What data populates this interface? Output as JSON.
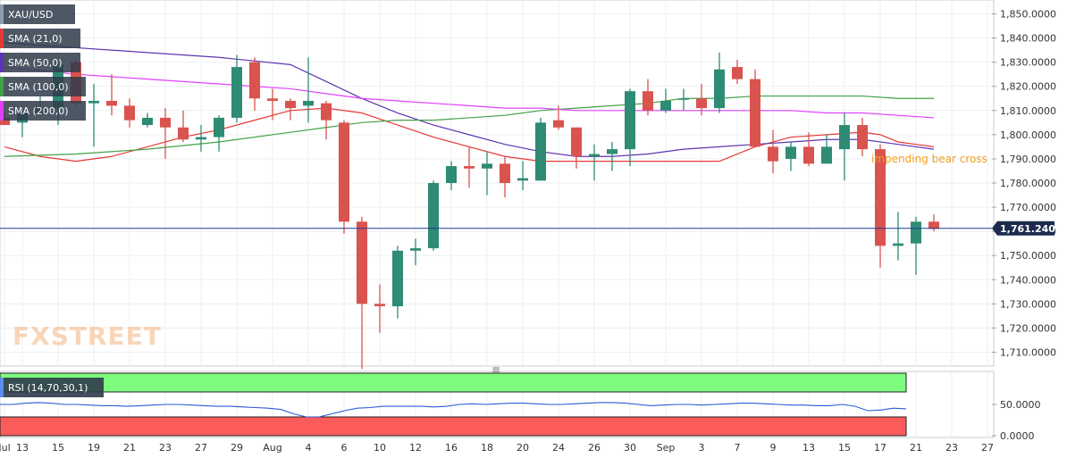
{
  "chart_data": [
    {
      "type": "candlestick",
      "symbol": "XAU/USD",
      "title": "XAU/USD",
      "ylim": [
        1705,
        1855
      ],
      "y_ticks": [
        "1,710.0000",
        "1,720.0000",
        "1,730.0000",
        "1,740.0000",
        "1,750.0000",
        "1,760.0000",
        "1,770.0000",
        "1,780.0000",
        "1,790.0000",
        "1,800.0000",
        "1,810.0000",
        "1,820.0000",
        "1,830.0000",
        "1,840.0000",
        "1,850.0000"
      ],
      "y_tick_values": [
        1710,
        1720,
        1730,
        1740,
        1750,
        1760,
        1770,
        1780,
        1790,
        1800,
        1810,
        1820,
        1830,
        1840,
        1850
      ],
      "last_price": 1761.24,
      "last_price_label": "1,761.2400",
      "annotation": "impending bear cross",
      "watermark": "FXSTREET",
      "legend": [
        {
          "name": "SMA (21,0)",
          "color": "#e53935"
        },
        {
          "name": "SMA (50,0)",
          "color": "#5e35b1"
        },
        {
          "name": "SMA (100,0)",
          "color": "#43a047"
        },
        {
          "name": "SMA (200,0)",
          "color": "#e040fb"
        }
      ],
      "colors": {
        "up": "#2e8b74",
        "down": "#d9534f",
        "annotation": "#f0a020",
        "price_line": "#1f3a93"
      },
      "x_tick_labels": [
        {
          "i": 0,
          "label": "Jul"
        },
        {
          "i": 1,
          "label": "13"
        },
        {
          "i": 3,
          "label": "15"
        },
        {
          "i": 5,
          "label": "19"
        },
        {
          "i": 7,
          "label": "21"
        },
        {
          "i": 9,
          "label": "23"
        },
        {
          "i": 11,
          "label": "27"
        },
        {
          "i": 13,
          "label": "29"
        },
        {
          "i": 15,
          "label": "Aug"
        },
        {
          "i": 17,
          "label": "4"
        },
        {
          "i": 19,
          "label": "6"
        },
        {
          "i": 21,
          "label": "10"
        },
        {
          "i": 23,
          "label": "12"
        },
        {
          "i": 25,
          "label": "16"
        },
        {
          "i": 27,
          "label": "18"
        },
        {
          "i": 29,
          "label": "20"
        },
        {
          "i": 31,
          "label": "24"
        },
        {
          "i": 33,
          "label": "26"
        },
        {
          "i": 35,
          "label": "30"
        },
        {
          "i": 37,
          "label": "Sep"
        },
        {
          "i": 39,
          "label": "3"
        },
        {
          "i": 41,
          "label": "7"
        },
        {
          "i": 43,
          "label": "9"
        },
        {
          "i": 45,
          "label": "13"
        },
        {
          "i": 47,
          "label": "15"
        },
        {
          "i": 49,
          "label": "17"
        },
        {
          "i": 51,
          "label": "21"
        },
        {
          "i": 53,
          "label": "23"
        },
        {
          "i": 55,
          "label": "27"
        }
      ],
      "candles": [
        {
          "o": 1807,
          "h": 1810,
          "l": 1804,
          "c": 1804
        },
        {
          "o": 1805,
          "h": 1812,
          "l": 1799,
          "c": 1809
        },
        {
          "o": 1809,
          "h": 1816,
          "l": 1808,
          "c": 1811
        },
        {
          "o": 1811,
          "h": 1830,
          "l": 1804,
          "c": 1829
        },
        {
          "o": 1830,
          "h": 1831,
          "l": 1812,
          "c": 1813
        },
        {
          "o": 1813,
          "h": 1821,
          "l": 1795,
          "c": 1814
        },
        {
          "o": 1814,
          "h": 1825,
          "l": 1808,
          "c": 1812
        },
        {
          "o": 1812,
          "h": 1815,
          "l": 1803,
          "c": 1806
        },
        {
          "o": 1804,
          "h": 1809,
          "l": 1803,
          "c": 1807
        },
        {
          "o": 1807,
          "h": 1811,
          "l": 1790,
          "c": 1803
        },
        {
          "o": 1803,
          "h": 1810,
          "l": 1797,
          "c": 1798
        },
        {
          "o": 1798,
          "h": 1804,
          "l": 1793,
          "c": 1799
        },
        {
          "o": 1799,
          "h": 1808,
          "l": 1793,
          "c": 1807
        },
        {
          "o": 1807,
          "h": 1833,
          "l": 1805,
          "c": 1828
        },
        {
          "o": 1830,
          "h": 1832,
          "l": 1810,
          "c": 1815
        },
        {
          "o": 1815,
          "h": 1819,
          "l": 1806,
          "c": 1814
        },
        {
          "o": 1814,
          "h": 1815,
          "l": 1806,
          "c": 1811
        },
        {
          "o": 1812,
          "h": 1832,
          "l": 1805,
          "c": 1814
        },
        {
          "o": 1813,
          "h": 1814,
          "l": 1798,
          "c": 1806
        },
        {
          "o": 1805,
          "h": 1806,
          "l": 1759,
          "c": 1764
        },
        {
          "o": 1764,
          "h": 1766,
          "l": 1703,
          "c": 1730
        },
        {
          "o": 1730,
          "h": 1738,
          "l": 1718,
          "c": 1729
        },
        {
          "o": 1729,
          "h": 1754,
          "l": 1724,
          "c": 1752
        },
        {
          "o": 1752,
          "h": 1757,
          "l": 1746,
          "c": 1753
        },
        {
          "o": 1753,
          "h": 1781,
          "l": 1752,
          "c": 1780
        },
        {
          "o": 1780,
          "h": 1789,
          "l": 1777,
          "c": 1787
        },
        {
          "o": 1787,
          "h": 1795,
          "l": 1778,
          "c": 1786
        },
        {
          "o": 1786,
          "h": 1793,
          "l": 1775,
          "c": 1788
        },
        {
          "o": 1788,
          "h": 1791,
          "l": 1774,
          "c": 1780
        },
        {
          "o": 1781,
          "h": 1789,
          "l": 1777,
          "c": 1782
        },
        {
          "o": 1781,
          "h": 1807,
          "l": 1781,
          "c": 1805
        },
        {
          "o": 1806,
          "h": 1812,
          "l": 1802,
          "c": 1803
        },
        {
          "o": 1803,
          "h": 1803,
          "l": 1786,
          "c": 1791
        },
        {
          "o": 1791,
          "h": 1796,
          "l": 1781,
          "c": 1792
        },
        {
          "o": 1792,
          "h": 1797,
          "l": 1785,
          "c": 1794
        },
        {
          "o": 1794,
          "h": 1819,
          "l": 1787,
          "c": 1818
        },
        {
          "o": 1818,
          "h": 1823,
          "l": 1808,
          "c": 1810
        },
        {
          "o": 1810,
          "h": 1819,
          "l": 1809,
          "c": 1814
        },
        {
          "o": 1815,
          "h": 1819,
          "l": 1810,
          "c": 1815
        },
        {
          "o": 1815,
          "h": 1821,
          "l": 1808,
          "c": 1811
        },
        {
          "o": 1811,
          "h": 1834,
          "l": 1809,
          "c": 1827
        },
        {
          "o": 1828,
          "h": 1831,
          "l": 1821,
          "c": 1823
        },
        {
          "o": 1823,
          "h": 1827,
          "l": 1795,
          "c": 1795
        },
        {
          "o": 1795,
          "h": 1802,
          "l": 1784,
          "c": 1789
        },
        {
          "o": 1790,
          "h": 1797,
          "l": 1785,
          "c": 1795
        },
        {
          "o": 1795,
          "h": 1801,
          "l": 1787,
          "c": 1788
        },
        {
          "o": 1788,
          "h": 1800,
          "l": 1788,
          "c": 1795
        },
        {
          "o": 1794,
          "h": 1809,
          "l": 1781,
          "c": 1804
        },
        {
          "o": 1804,
          "h": 1807,
          "l": 1791,
          "c": 1794
        },
        {
          "o": 1794,
          "h": 1796,
          "l": 1745,
          "c": 1754
        },
        {
          "o": 1754,
          "h": 1768,
          "l": 1748,
          "c": 1755
        },
        {
          "o": 1755,
          "h": 1766,
          "l": 1742,
          "c": 1764
        },
        {
          "o": 1764,
          "h": 1767,
          "l": 1760,
          "c": 1761
        }
      ],
      "sma21": [
        [
          0,
          1795
        ],
        [
          2,
          1791
        ],
        [
          4,
          1789
        ],
        [
          6,
          1791
        ],
        [
          8,
          1795
        ],
        [
          10,
          1799
        ],
        [
          12,
          1802
        ],
        [
          14,
          1806
        ],
        [
          16,
          1810
        ],
        [
          18,
          1811
        ],
        [
          20,
          1809
        ],
        [
          22,
          1804
        ],
        [
          24,
          1799
        ],
        [
          26,
          1795
        ],
        [
          28,
          1791
        ],
        [
          30,
          1789
        ],
        [
          32,
          1789
        ],
        [
          34,
          1789
        ],
        [
          36,
          1789
        ],
        [
          38,
          1789
        ],
        [
          40,
          1789
        ],
        [
          42,
          1795
        ],
        [
          44,
          1799
        ],
        [
          46,
          1800
        ],
        [
          48,
          1801
        ],
        [
          49,
          1800
        ],
        [
          50,
          1797
        ],
        [
          51,
          1796
        ],
        [
          52,
          1795
        ]
      ],
      "sma50": [
        [
          0,
          1838
        ],
        [
          4,
          1836
        ],
        [
          8,
          1834
        ],
        [
          12,
          1832
        ],
        [
          16,
          1829
        ],
        [
          18,
          1822
        ],
        [
          20,
          1815
        ],
        [
          22,
          1809
        ],
        [
          24,
          1804
        ],
        [
          26,
          1800
        ],
        [
          28,
          1796
        ],
        [
          30,
          1793
        ],
        [
          32,
          1791
        ],
        [
          34,
          1791
        ],
        [
          36,
          1792
        ],
        [
          38,
          1794
        ],
        [
          40,
          1795
        ],
        [
          42,
          1796
        ],
        [
          44,
          1797
        ],
        [
          46,
          1798
        ],
        [
          48,
          1798
        ],
        [
          50,
          1796
        ],
        [
          52,
          1794
        ]
      ],
      "sma100": [
        [
          0,
          1791
        ],
        [
          4,
          1792
        ],
        [
          8,
          1794
        ],
        [
          12,
          1797
        ],
        [
          16,
          1801
        ],
        [
          18,
          1803
        ],
        [
          20,
          1805
        ],
        [
          22,
          1806
        ],
        [
          24,
          1806
        ],
        [
          26,
          1807
        ],
        [
          28,
          1808
        ],
        [
          30,
          1810
        ],
        [
          32,
          1811
        ],
        [
          34,
          1812
        ],
        [
          36,
          1813
        ],
        [
          38,
          1815
        ],
        [
          40,
          1815
        ],
        [
          42,
          1816
        ],
        [
          44,
          1816
        ],
        [
          46,
          1816
        ],
        [
          48,
          1816
        ],
        [
          50,
          1815
        ],
        [
          52,
          1815
        ]
      ],
      "sma200": [
        [
          0,
          1828
        ],
        [
          4,
          1825
        ],
        [
          8,
          1823
        ],
        [
          12,
          1821
        ],
        [
          16,
          1819
        ],
        [
          18,
          1817
        ],
        [
          20,
          1815
        ],
        [
          22,
          1814
        ],
        [
          24,
          1813
        ],
        [
          26,
          1812
        ],
        [
          28,
          1811
        ],
        [
          30,
          1811
        ],
        [
          32,
          1810
        ],
        [
          34,
          1810
        ],
        [
          36,
          1810
        ],
        [
          38,
          1810
        ],
        [
          40,
          1810
        ],
        [
          42,
          1810
        ],
        [
          44,
          1810
        ],
        [
          46,
          1809
        ],
        [
          48,
          1809
        ],
        [
          50,
          1808
        ],
        [
          52,
          1807
        ]
      ]
    },
    {
      "type": "line",
      "title": "RSI (14,70,30,1)",
      "ylim": [
        0,
        100
      ],
      "y_ticks": [
        "50.0000",
        "0.0000"
      ],
      "y_tick_values": [
        50,
        0
      ],
      "overbought": 70,
      "oversold": 30,
      "colors": {
        "line": "#2a5bd7",
        "overbought_zone": "#7dfb7d",
        "oversold_zone": "#fb5b5b"
      },
      "rsi": [
        50,
        50,
        52,
        53,
        52,
        50,
        50,
        49,
        48,
        48,
        47,
        48,
        49,
        50,
        50,
        49,
        48,
        47,
        47,
        46,
        45,
        44,
        42,
        35,
        30,
        30,
        35,
        40,
        44,
        45,
        47,
        47,
        47,
        47,
        46,
        47,
        50,
        51,
        50,
        51,
        52,
        52,
        51,
        50,
        50,
        51,
        52,
        53,
        53,
        52,
        50,
        48,
        49,
        50,
        50,
        49,
        50,
        51,
        52,
        52,
        51,
        50,
        49,
        49,
        48,
        48,
        50,
        47,
        40,
        41,
        44,
        43
      ]
    }
  ],
  "controls": {
    "splitter_glyph": "≡"
  }
}
